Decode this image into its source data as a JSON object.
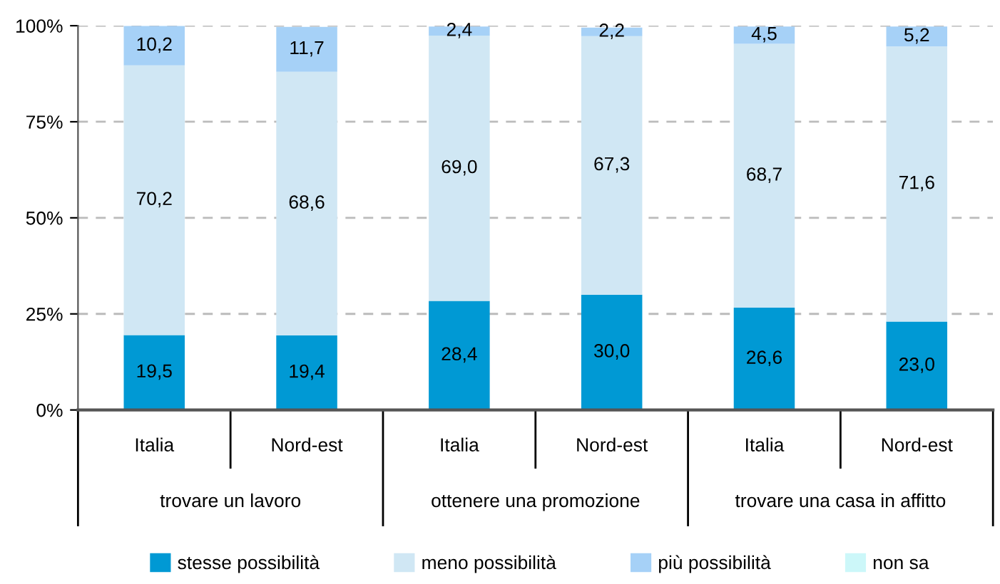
{
  "chart_data": {
    "type": "bar",
    "stacked": true,
    "categories": [
      "Italia",
      "Nord-est",
      "Italia",
      "Nord-est",
      "Italia",
      "Nord-est"
    ],
    "annotations": [
      "trovare un lavoro",
      "ottenere una promozione",
      "trovare una casa in affitto"
    ],
    "series": [
      {
        "name": "stesse possibilità",
        "color": "#0099d4",
        "values": [
          19.5,
          19.4,
          28.4,
          30.0,
          26.6,
          23.0
        ],
        "value_labels": [
          "19,5",
          "19,4",
          "28,4",
          "30,0",
          "26,6",
          "23,0"
        ]
      },
      {
        "name": "meno possibilità",
        "color": "#d0e7f4",
        "values": [
          70.2,
          68.6,
          69.0,
          67.3,
          68.7,
          71.6
        ],
        "value_labels": [
          "70,2",
          "68,6",
          "69,0",
          "67,3",
          "68,7",
          "71,6"
        ]
      },
      {
        "name": "più possibilità",
        "color": "#a6d1f7",
        "values": [
          10.2,
          11.7,
          2.4,
          2.2,
          4.5,
          5.2
        ],
        "value_labels": [
          "10,2",
          "11,7",
          "2,4",
          "2,2",
          "4,5",
          "5,2"
        ]
      },
      {
        "name": "non sa",
        "color": "#ccf7f9",
        "values": [
          null,
          null,
          null,
          null,
          null,
          null
        ]
      }
    ],
    "ylim": [
      0,
      100
    ],
    "yticks": [
      {
        "value": 0,
        "label": "0%"
      },
      {
        "value": 25,
        "label": "25%"
      },
      {
        "value": 50,
        "label": "50%"
      },
      {
        "value": 75,
        "label": "75%"
      },
      {
        "value": 100,
        "label": "100%"
      }
    ],
    "grid": "y",
    "legend": "bottom"
  }
}
